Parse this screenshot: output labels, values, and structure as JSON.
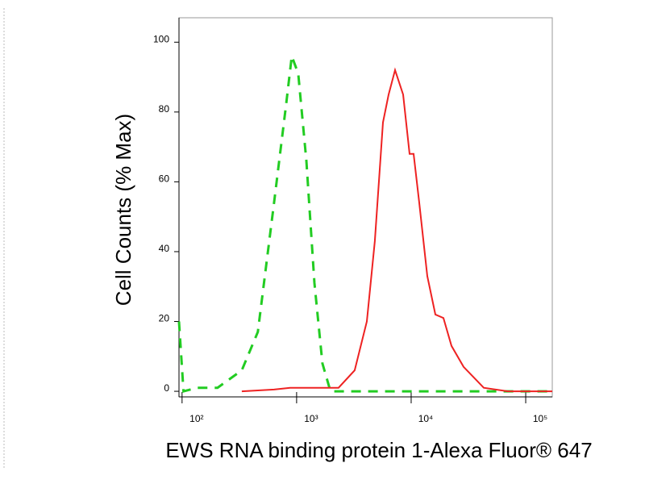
{
  "chart_data": {
    "type": "line",
    "xlabel": "EWS RNA binding protein 1-Alexa Fluor® 647",
    "ylabel": "Cell Counts (% Max)",
    "xscale": "log",
    "xlim": [
      94,
      170600
    ],
    "ylim": [
      -1.6,
      107
    ],
    "xticks": [
      {
        "value": 100,
        "label": "10²"
      },
      {
        "value": 1000,
        "label": "10³"
      },
      {
        "value": 10000,
        "label": "10⁴"
      },
      {
        "value": 100000,
        "label": "10⁵"
      }
    ],
    "yticks": [
      0,
      20,
      40,
      60,
      80,
      100
    ],
    "series": [
      {
        "color": "#22cc22",
        "dashed": true,
        "x": [
          94,
          103,
          136,
          204,
          332,
          459,
          635,
          809,
          908,
          1033,
          1216,
          1430,
          1680,
          1977,
          3780,
          170600
        ],
        "values": [
          20,
          0,
          1,
          1,
          6,
          17,
          54,
          82,
          96,
          91,
          66,
          31,
          8,
          0,
          0,
          0
        ]
      },
      {
        "color": "#ee2222",
        "dashed": false,
        "x": [
          332,
          635,
          879,
          1430,
          1977,
          2323,
          3213,
          4100,
          4820,
          5670,
          6355,
          7230,
          8510,
          9690,
          10500,
          11760,
          13830,
          16260,
          19130,
          22500,
          28700,
          43000,
          70000,
          170600
        ],
        "values": [
          0,
          0.5,
          1,
          1,
          1,
          1,
          6,
          20,
          43,
          77,
          85,
          92,
          85,
          68,
          68,
          54,
          33,
          22,
          21,
          13,
          7,
          1,
          0,
          0
        ]
      }
    ]
  }
}
